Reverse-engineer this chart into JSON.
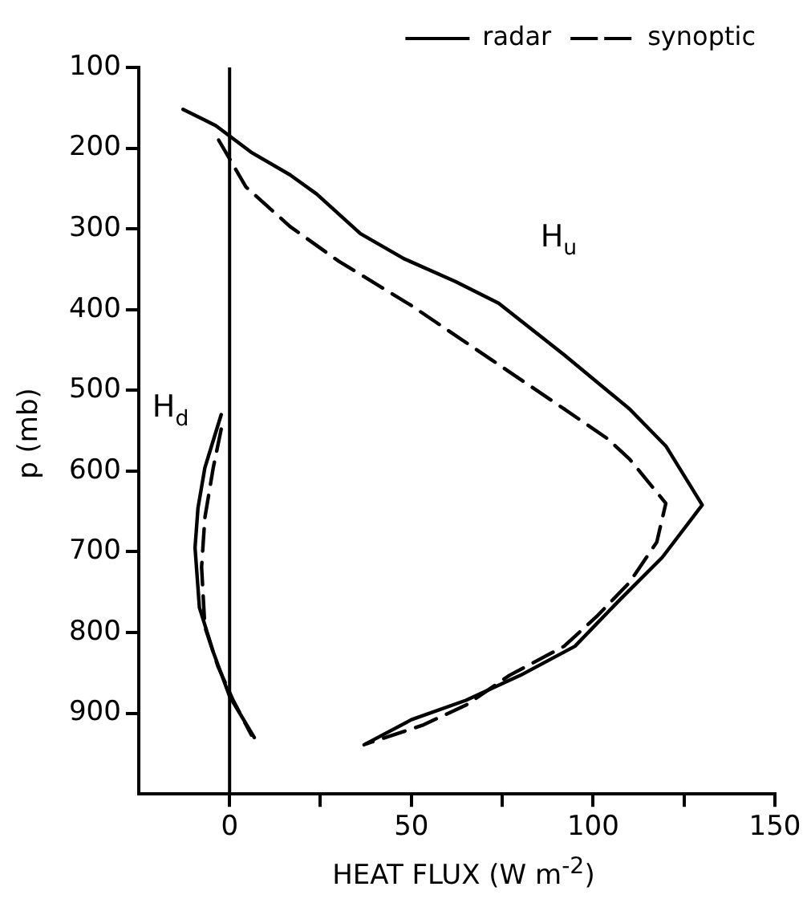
{
  "chart_data": {
    "type": "line",
    "xlabel": "HEAT FLUX (W m$^{-2}$)",
    "ylabel": "p (mb)",
    "xlim": [
      -25,
      150
    ],
    "xticks": [
      0,
      {
        "value": 25,
        "label": null
      },
      50,
      {
        "value": 75,
        "label": null
      },
      100,
      {
        "value": 125,
        "label": null
      },
      150
    ],
    "ylim": [
      1000,
      100
    ],
    "yticks": [
      100,
      200,
      300,
      400,
      500,
      600,
      700,
      800,
      900
    ],
    "grid": false,
    "legend": "top right",
    "marker": "none",
    "ref_lines": [
      {
        "axis": "x",
        "value": 0,
        "color": "#000000"
      }
    ],
    "annotations": [
      "H$_{u}$",
      "H$_{d}$"
    ],
    "series": [
      {
        "name": "radar",
        "color": "#000000",
        "line_style": "solid",
        "x": [
          -12.8,
          -3.8,
          5.9,
          16.6,
          24,
          36,
          48,
          62,
          74,
          92,
          110,
          120,
          130,
          119,
          107,
          95,
          80,
          65,
          50,
          37
        ],
        "values": [
          152,
          172,
          205,
          233,
          257,
          306,
          337,
          365,
          392,
          456,
          523,
          569,
          642,
          707,
          761,
          817,
          853,
          884,
          908,
          939
        ]
      },
      {
        "name": "synoptic",
        "color": "#000000",
        "line_style": "dashed",
        "x": [
          -3,
          4.5,
          16.6,
          30,
          50,
          72,
          92,
          104,
          110,
          120,
          117.5,
          110,
          101,
          92,
          77,
          65,
          53,
          37.5
        ],
        "values": [
          190,
          248,
          297,
          340,
          395,
          462,
          523,
          560,
          585,
          640,
          688,
          738,
          780,
          817,
          853,
          890,
          915,
          938
        ]
      },
      {
        "color": "#000000",
        "line_style": "solid",
        "x": [
          -2.3,
          -6.8,
          -8.7,
          -9.5,
          -8.3,
          -4.5,
          0,
          6.8
        ],
        "values": [
          530,
          596,
          646,
          695,
          769,
          824,
          879,
          930
        ]
      },
      {
        "color": "#000000",
        "line_style": "dashed",
        "x": [
          -2.3,
          -4.5,
          -6.8,
          -7.7,
          -6.8,
          -3.2,
          1,
          6
        ],
        "values": [
          548,
          596,
          658,
          719,
          793,
          842,
          884,
          927
        ]
      }
    ]
  }
}
